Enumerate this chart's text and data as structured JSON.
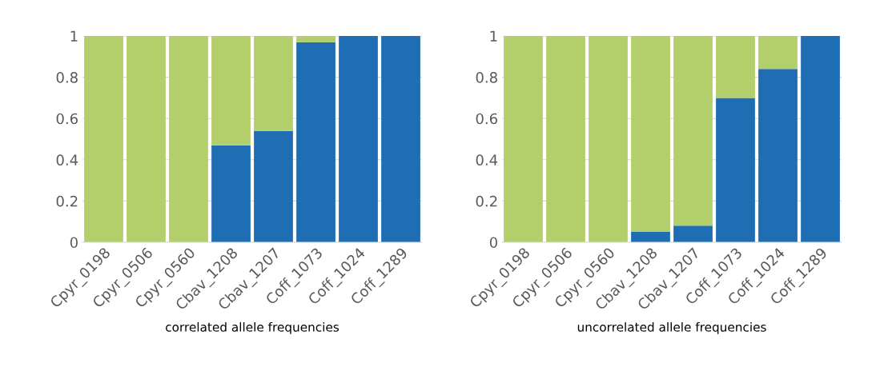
{
  "chart_data": [
    {
      "type": "bar",
      "stacked": true,
      "xlabel": "correlated allele frequencies",
      "categories": [
        "Cpyr_0198",
        "Cpyr_0506",
        "Cpyr_0560",
        "Cbav_1208",
        "Cbav_1207",
        "Coff_1073",
        "Coff_1024",
        "Coff_1289"
      ],
      "series": [
        {
          "color": "#1f6eb4",
          "values": [
            0,
            0,
            0,
            0.47,
            0.54,
            0.97,
            1,
            1
          ]
        },
        {
          "color": "#b3cf6b",
          "values": [
            1,
            1,
            1,
            0.53,
            0.46,
            0.03,
            0,
            0
          ]
        }
      ],
      "ylim": [
        0,
        1
      ],
      "yticks": [
        0,
        0.2,
        0.4,
        0.6,
        0.8,
        1
      ],
      "grid": "y"
    },
    {
      "type": "bar",
      "stacked": true,
      "xlabel": "uncorrelated allele frequencies",
      "categories": [
        "Cpyr_0198",
        "Cpyr_0506",
        "Cpyr_0560",
        "Cbav_1208",
        "Cbav_1207",
        "Coff_1073",
        "Coff_1024",
        "Coff_1289"
      ],
      "series": [
        {
          "color": "#1f6eb4",
          "values": [
            0,
            0,
            0,
            0.05,
            0.08,
            0.7,
            0.84,
            1
          ]
        },
        {
          "color": "#b3cf6b",
          "values": [
            1,
            1,
            1,
            0.95,
            0.92,
            0.3,
            0.16,
            0
          ]
        }
      ],
      "ylim": [
        0,
        1
      ],
      "yticks": [
        0,
        0.2,
        0.4,
        0.6,
        0.8,
        1
      ],
      "grid": "y"
    }
  ]
}
